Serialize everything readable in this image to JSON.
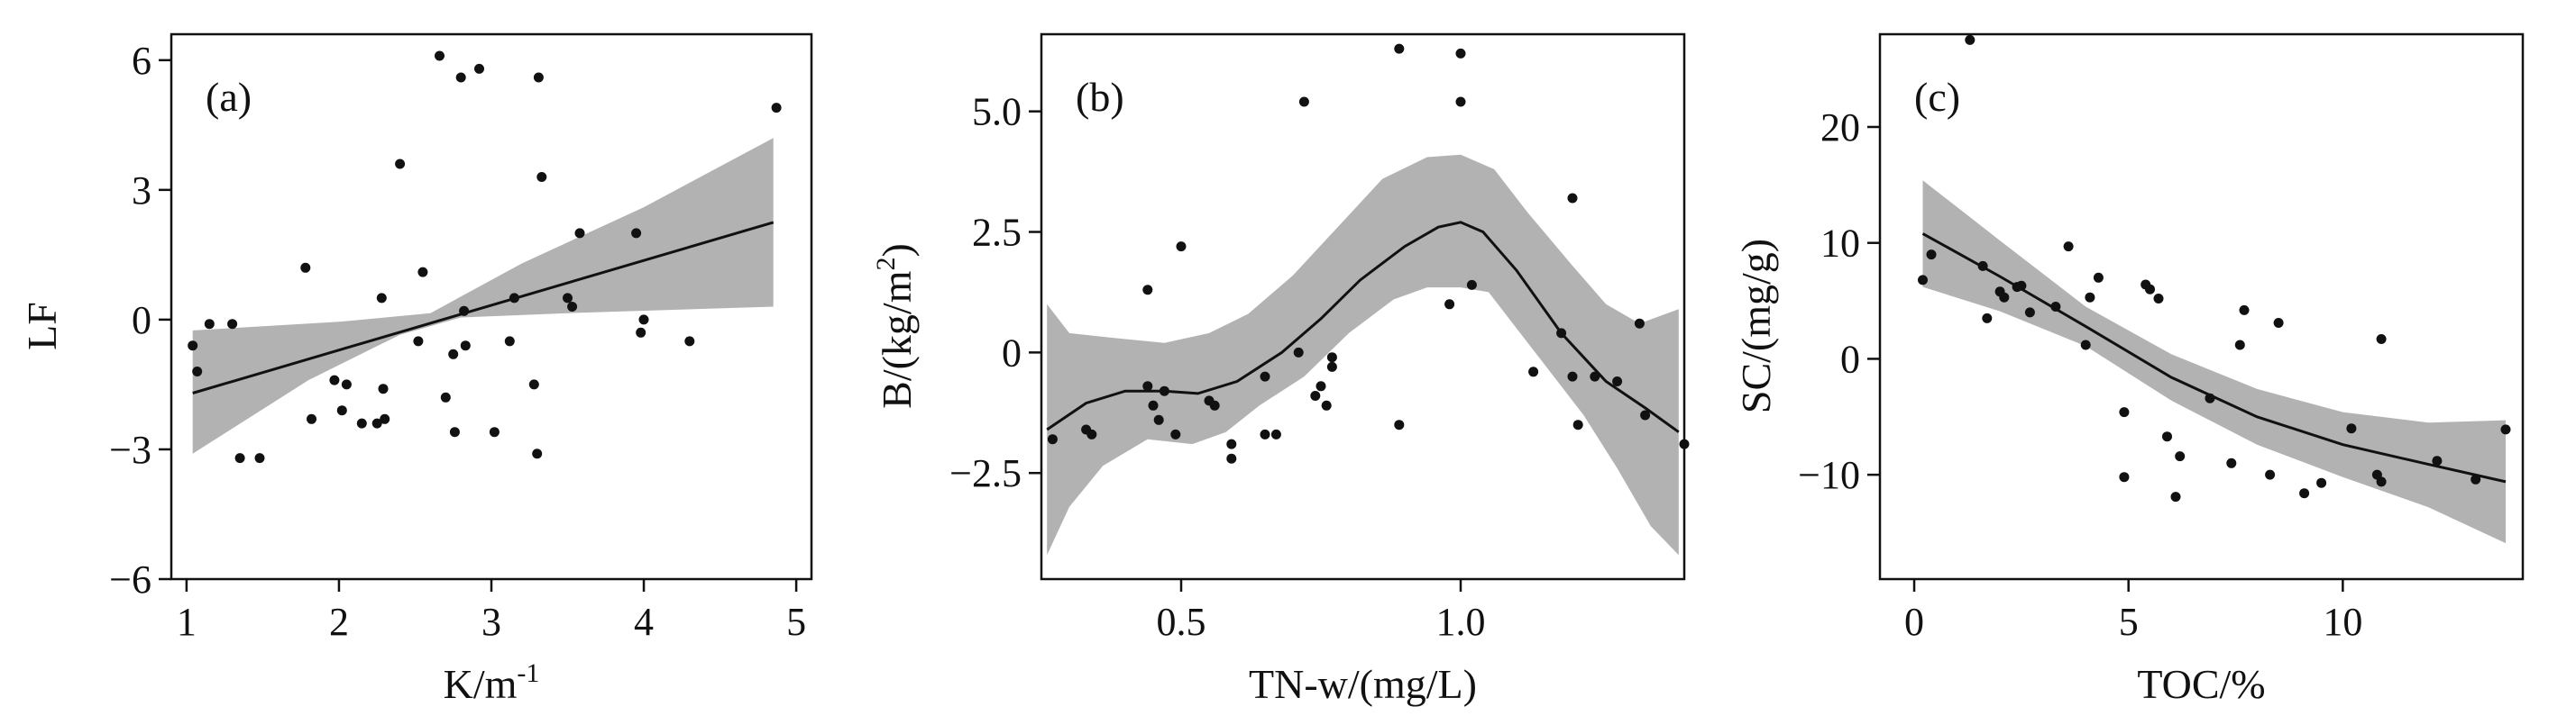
{
  "chart_data": [
    {
      "type": "scatter",
      "panel_label": "(a)",
      "xlabel": "K/m",
      "xlabel_sup": "-1",
      "ylabel": "LF",
      "xlim": [
        0.9,
        5.1
      ],
      "ylim": [
        -6.0,
        6.6
      ],
      "xticks": [
        {
          "v": 1,
          "t": "1"
        },
        {
          "v": 2,
          "t": "2"
        },
        {
          "v": 3,
          "t": "3"
        },
        {
          "v": 4,
          "t": "4"
        },
        {
          "v": 5,
          "t": "5"
        }
      ],
      "yticks": [
        {
          "v": -6,
          "t": "−6"
        },
        {
          "v": -3,
          "t": "−3"
        },
        {
          "v": 0,
          "t": "0"
        },
        {
          "v": 3,
          "t": "3"
        },
        {
          "v": 6,
          "t": "6"
        }
      ],
      "points": [
        [
          1.04,
          -0.6
        ],
        [
          1.07,
          -1.2
        ],
        [
          1.15,
          -0.1
        ],
        [
          1.3,
          -0.1
        ],
        [
          1.35,
          -3.2
        ],
        [
          1.48,
          -3.2
        ],
        [
          1.78,
          1.2
        ],
        [
          1.82,
          -2.3
        ],
        [
          1.97,
          -1.4
        ],
        [
          2.02,
          -2.1
        ],
        [
          2.05,
          -1.5
        ],
        [
          2.15,
          -2.4
        ],
        [
          2.25,
          -2.4
        ],
        [
          2.28,
          0.5
        ],
        [
          2.29,
          -1.6
        ],
        [
          2.3,
          -2.3
        ],
        [
          2.4,
          3.6
        ],
        [
          2.52,
          -0.5
        ],
        [
          2.55,
          1.1
        ],
        [
          2.66,
          6.1
        ],
        [
          2.7,
          -1.8
        ],
        [
          2.75,
          -0.8
        ],
        [
          2.76,
          -2.6
        ],
        [
          2.8,
          5.6
        ],
        [
          2.82,
          0.2
        ],
        [
          2.83,
          -0.6
        ],
        [
          2.92,
          5.8
        ],
        [
          3.02,
          -2.6
        ],
        [
          3.12,
          -0.5
        ],
        [
          3.15,
          0.5
        ],
        [
          3.28,
          -1.5
        ],
        [
          3.3,
          -3.1
        ],
        [
          3.31,
          5.6
        ],
        [
          3.33,
          3.3
        ],
        [
          3.5,
          0.5
        ],
        [
          3.53,
          0.3
        ],
        [
          3.58,
          2.0
        ],
        [
          3.95,
          2.0
        ],
        [
          3.98,
          -0.3
        ],
        [
          4.0,
          0.0
        ],
        [
          4.3,
          -0.5
        ],
        [
          4.87,
          4.9
        ]
      ],
      "fit": [
        [
          1.04,
          -1.7
        ],
        [
          4.85,
          2.25
        ]
      ],
      "band_upper": [
        [
          1.04,
          -0.25
        ],
        [
          2.0,
          -0.05
        ],
        [
          2.6,
          0.15
        ],
        [
          3.2,
          1.3
        ],
        [
          4.0,
          2.6
        ],
        [
          4.85,
          4.2
        ]
      ],
      "band_lower": [
        [
          1.04,
          -3.1
        ],
        [
          1.8,
          -1.4
        ],
        [
          2.4,
          -0.35
        ],
        [
          2.8,
          0.05
        ],
        [
          3.5,
          0.15
        ],
        [
          4.85,
          0.3
        ]
      ]
    },
    {
      "type": "scatter",
      "panel_label": "(b)",
      "xlabel": "TN-w/(mg/L)",
      "ylabel": "B/(kg/m",
      "ylabel_sup": "2",
      "ylabel_tail": ")",
      "xlim": [
        0.25,
        1.4
      ],
      "ylim": [
        -4.7,
        6.6
      ],
      "xticks": [
        {
          "v": 0.5,
          "t": "0.5"
        },
        {
          "v": 1.0,
          "t": "1.0"
        }
      ],
      "yticks": [
        {
          "v": -2.5,
          "t": "−2.5"
        },
        {
          "v": 0,
          "t": "0"
        },
        {
          "v": 2.5,
          "t": "2.5"
        },
        {
          "v": 5.0,
          "t": "5.0"
        }
      ],
      "points": [
        [
          0.27,
          -1.8
        ],
        [
          0.33,
          -1.6
        ],
        [
          0.34,
          -1.7
        ],
        [
          0.44,
          1.3
        ],
        [
          0.44,
          -0.7
        ],
        [
          0.45,
          -1.1
        ],
        [
          0.46,
          -1.4
        ],
        [
          0.47,
          -0.8
        ],
        [
          0.49,
          -1.7
        ],
        [
          0.5,
          2.2
        ],
        [
          0.55,
          -1.0
        ],
        [
          0.56,
          -1.1
        ],
        [
          0.59,
          -2.2
        ],
        [
          0.59,
          -1.9
        ],
        [
          0.65,
          -1.7
        ],
        [
          0.65,
          -0.5
        ],
        [
          0.67,
          -1.7
        ],
        [
          0.71,
          0.0
        ],
        [
          0.72,
          5.2
        ],
        [
          0.74,
          -0.9
        ],
        [
          0.75,
          -0.7
        ],
        [
          0.76,
          -1.1
        ],
        [
          0.77,
          -0.1
        ],
        [
          0.77,
          -0.3
        ],
        [
          0.89,
          -1.5
        ],
        [
          0.89,
          6.3
        ],
        [
          0.98,
          1.0
        ],
        [
          1.0,
          6.2
        ],
        [
          1.0,
          5.2
        ],
        [
          1.02,
          1.4
        ],
        [
          1.13,
          -0.4
        ],
        [
          1.18,
          0.4
        ],
        [
          1.2,
          -0.5
        ],
        [
          1.2,
          3.2
        ],
        [
          1.21,
          -1.5
        ],
        [
          1.24,
          -0.5
        ],
        [
          1.28,
          -0.6
        ],
        [
          1.32,
          0.6
        ],
        [
          1.33,
          -1.3
        ],
        [
          1.4,
          -1.9
        ]
      ],
      "fit": [
        [
          0.26,
          -1.6
        ],
        [
          0.33,
          -1.05
        ],
        [
          0.4,
          -0.8
        ],
        [
          0.47,
          -0.8
        ],
        [
          0.53,
          -0.85
        ],
        [
          0.6,
          -0.6
        ],
        [
          0.68,
          0.0
        ],
        [
          0.75,
          0.7
        ],
        [
          0.82,
          1.5
        ],
        [
          0.9,
          2.2
        ],
        [
          0.96,
          2.6
        ],
        [
          1.0,
          2.7
        ],
        [
          1.04,
          2.5
        ],
        [
          1.1,
          1.7
        ],
        [
          1.18,
          0.4
        ],
        [
          1.26,
          -0.6
        ],
        [
          1.33,
          -1.15
        ],
        [
          1.39,
          -1.65
        ]
      ],
      "band_upper": [
        [
          0.26,
          1.0
        ],
        [
          0.3,
          0.4
        ],
        [
          0.38,
          0.3
        ],
        [
          0.47,
          0.2
        ],
        [
          0.55,
          0.4
        ],
        [
          0.62,
          0.8
        ],
        [
          0.7,
          1.6
        ],
        [
          0.78,
          2.6
        ],
        [
          0.86,
          3.6
        ],
        [
          0.94,
          4.05
        ],
        [
          1.0,
          4.1
        ],
        [
          1.06,
          3.8
        ],
        [
          1.12,
          2.9
        ],
        [
          1.2,
          1.8
        ],
        [
          1.26,
          1.0
        ],
        [
          1.32,
          0.6
        ],
        [
          1.39,
          0.9
        ]
      ],
      "band_lower": [
        [
          0.26,
          -4.2
        ],
        [
          0.3,
          -3.2
        ],
        [
          0.36,
          -2.35
        ],
        [
          0.44,
          -1.8
        ],
        [
          0.52,
          -1.9
        ],
        [
          0.58,
          -1.65
        ],
        [
          0.64,
          -1.1
        ],
        [
          0.72,
          -0.5
        ],
        [
          0.8,
          0.4
        ],
        [
          0.88,
          1.1
        ],
        [
          0.94,
          1.35
        ],
        [
          1.0,
          1.35
        ],
        [
          1.05,
          1.25
        ],
        [
          1.1,
          0.5
        ],
        [
          1.16,
          -0.4
        ],
        [
          1.22,
          -1.3
        ],
        [
          1.28,
          -2.4
        ],
        [
          1.34,
          -3.6
        ],
        [
          1.39,
          -4.2
        ]
      ]
    },
    {
      "type": "scatter",
      "panel_label": "(c)",
      "xlabel": "TOC/%",
      "ylabel": "SC/(mg/g)",
      "xlim": [
        -0.8,
        14.2
      ],
      "ylim": [
        -19.0,
        28.0
      ],
      "xticks": [
        {
          "v": 0,
          "t": "0"
        },
        {
          "v": 5,
          "t": "5"
        },
        {
          "v": 10,
          "t": "10"
        }
      ],
      "yticks": [
        {
          "v": -10,
          "t": "−10"
        },
        {
          "v": 0,
          "t": "0"
        },
        {
          "v": 10,
          "t": "10"
        },
        {
          "v": 20,
          "t": "20"
        }
      ],
      "points": [
        [
          0.2,
          6.8
        ],
        [
          0.4,
          9.0
        ],
        [
          1.3,
          27.5
        ],
        [
          1.6,
          8.0
        ],
        [
          1.7,
          3.5
        ],
        [
          2.0,
          5.8
        ],
        [
          2.1,
          5.3
        ],
        [
          2.4,
          6.2
        ],
        [
          2.5,
          6.3
        ],
        [
          2.7,
          4.0
        ],
        [
          3.3,
          4.5
        ],
        [
          3.6,
          9.7
        ],
        [
          4.0,
          1.2
        ],
        [
          4.1,
          5.3
        ],
        [
          4.3,
          7.0
        ],
        [
          4.9,
          -4.6
        ],
        [
          4.9,
          -10.2
        ],
        [
          5.4,
          6.4
        ],
        [
          5.5,
          6.0
        ],
        [
          5.7,
          5.2
        ],
        [
          5.9,
          -6.7
        ],
        [
          6.1,
          -11.9
        ],
        [
          6.2,
          -8.4
        ],
        [
          6.9,
          -3.4
        ],
        [
          7.4,
          -9.0
        ],
        [
          7.6,
          1.2
        ],
        [
          7.7,
          4.2
        ],
        [
          8.3,
          -10.0
        ],
        [
          8.5,
          3.1
        ],
        [
          9.1,
          -11.6
        ],
        [
          9.5,
          -10.7
        ],
        [
          10.2,
          -6.0
        ],
        [
          10.8,
          -10.0
        ],
        [
          10.9,
          -10.6
        ],
        [
          10.9,
          1.7
        ],
        [
          12.2,
          -8.8
        ],
        [
          13.1,
          -10.4
        ],
        [
          13.8,
          -6.1
        ]
      ],
      "fit": [
        [
          0.2,
          10.8
        ],
        [
          2.0,
          7.1
        ],
        [
          4.0,
          2.8
        ],
        [
          6.0,
          -1.6
        ],
        [
          8.0,
          -5.0
        ],
        [
          10.0,
          -7.4
        ],
        [
          12.0,
          -9.1
        ],
        [
          13.8,
          -10.6
        ]
      ],
      "band_upper": [
        [
          0.2,
          15.4
        ],
        [
          2.0,
          10.2
        ],
        [
          4.0,
          4.5
        ],
        [
          6.0,
          0.4
        ],
        [
          8.0,
          -2.6
        ],
        [
          10.0,
          -4.6
        ],
        [
          12.0,
          -5.5
        ],
        [
          13.8,
          -5.3
        ]
      ],
      "band_lower": [
        [
          0.2,
          6.2
        ],
        [
          2.0,
          4.1
        ],
        [
          4.0,
          1.1
        ],
        [
          6.0,
          -3.6
        ],
        [
          8.0,
          -7.4
        ],
        [
          10.0,
          -10.2
        ],
        [
          12.0,
          -12.8
        ],
        [
          13.8,
          -15.9
        ]
      ]
    }
  ]
}
